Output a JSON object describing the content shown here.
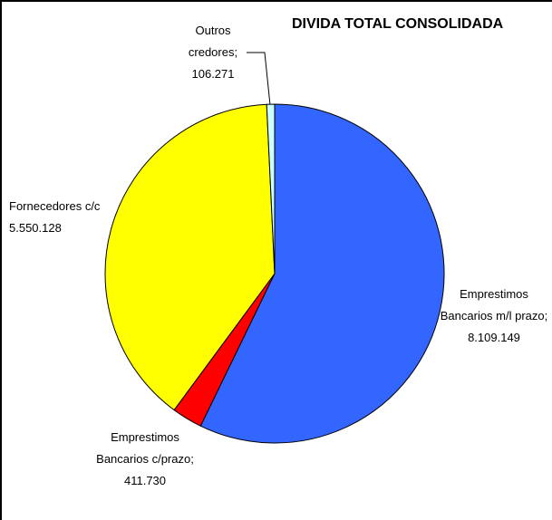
{
  "chart_data": {
    "type": "pie",
    "title": "DIVIDA TOTAL CONSOLIDADA",
    "categories": [
      "Emprestimos Bancarios m/l prazo;",
      "Emprestimos Bancarios c/prazo;",
      "Fornecedores c/c",
      "Outros credores;"
    ],
    "values": [
      8109149,
      411730,
      5550128,
      106271
    ],
    "value_labels": [
      "8.109.149",
      "411.730",
      "5.550.128",
      "106.271"
    ],
    "colors": [
      "#3366ff",
      "#ff0000",
      "#ffff00",
      "#ccffff"
    ]
  }
}
